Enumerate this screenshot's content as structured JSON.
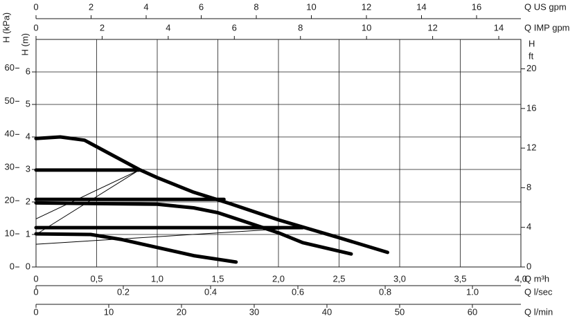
{
  "chart_data": {
    "type": "line",
    "xlabel": "Q m³h",
    "xlim": [
      0,
      4.0
    ],
    "xticks": [
      0,
      {
        "value": 0.5,
        "label": "0,5"
      },
      {
        "value": 1,
        "label": "1,0"
      },
      {
        "value": 1.5,
        "label": "1,5"
      },
      {
        "value": 2,
        "label": "2,0"
      },
      {
        "value": 2.5,
        "label": "2,5"
      },
      {
        "value": 3,
        "label": "3,0"
      },
      {
        "value": 3.5,
        "label": "3,5"
      },
      {
        "value": 4,
        "label": "4,0"
      }
    ],
    "ylabel": "H (m)",
    "ylim": [
      0,
      7
    ],
    "yticks": [
      0,
      1,
      2,
      3,
      4,
      5,
      6
    ],
    "grid": true,
    "x_axes": [
      {
        "position": "top",
        "label": "Q US gpm",
        "xlim": [
          0,
          17.61
        ],
        "xticks": [
          0,
          2,
          4,
          6,
          8,
          10,
          12,
          14,
          16
        ]
      },
      {
        "position": "top",
        "label": "Q IMP gpm",
        "xlim": [
          0,
          14.67
        ],
        "xticks": [
          0,
          2,
          4,
          6,
          8,
          10,
          12,
          14
        ]
      },
      {
        "position": "bottom",
        "label": "Q l/sec",
        "xlim": [
          0,
          1.111
        ],
        "xticks": [
          0,
          0.2,
          0.4,
          0.6,
          0.8,
          {
            "value": 1,
            "label": "1.0"
          }
        ]
      },
      {
        "position": "bottom",
        "label": "Q l/min",
        "xlim": [
          0,
          66.67
        ],
        "xticks": [
          0,
          10,
          20,
          30,
          40,
          50,
          60
        ]
      }
    ],
    "y_axes": [
      {
        "position": "left",
        "label": "H (kPa)",
        "ylim": [
          0,
          68.65
        ],
        "yticks": [
          0,
          10,
          20,
          30,
          40,
          50,
          60
        ]
      },
      {
        "position": "right",
        "label": "H",
        "unit": "ft",
        "ylim": [
          0,
          22.97
        ],
        "yticks": [
          0,
          4,
          8,
          12,
          16,
          20
        ]
      }
    ],
    "series": [
      {
        "color": "#000000",
        "linestyle": "thick",
        "x": [
          0,
          0.2,
          0.4,
          0.6,
          0.85,
          1.0,
          1.3,
          1.6,
          2.0,
          2.5,
          2.9
        ],
        "values": [
          3.95,
          4.0,
          3.9,
          3.5,
          3.0,
          2.75,
          2.3,
          1.95,
          1.45,
          0.9,
          0.45
        ]
      },
      {
        "color": "#000000",
        "linestyle": "thick",
        "x": [
          0,
          1.0,
          1.3,
          1.5,
          1.8,
          2.0,
          2.2,
          2.6
        ],
        "values": [
          1.97,
          1.93,
          1.82,
          1.67,
          1.3,
          1.05,
          0.75,
          0.4
        ]
      },
      {
        "color": "#000000",
        "linestyle": "thick",
        "x": [
          0,
          0.45,
          0.7,
          1.0,
          1.3,
          1.65
        ],
        "values": [
          1.02,
          1.0,
          0.85,
          0.6,
          0.35,
          0.15
        ]
      },
      {
        "color": "#000000",
        "linestyle": "thick",
        "x": [
          0,
          0.85
        ],
        "values": [
          2.98,
          2.98
        ]
      },
      {
        "color": "#000000",
        "linestyle": "thick",
        "x": [
          0,
          1.55
        ],
        "values": [
          2.08,
          2.08
        ]
      },
      {
        "color": "#000000",
        "linestyle": "thick",
        "x": [
          0,
          2.2
        ],
        "values": [
          1.21,
          1.21
        ]
      },
      {
        "color": "#000000",
        "linestyle": "thin",
        "x": [
          0,
          0.85
        ],
        "values": [
          1.48,
          2.98
        ]
      },
      {
        "color": "#000000",
        "linestyle": "thin",
        "x": [
          0,
          0.85
        ],
        "values": [
          1.0,
          2.98
        ]
      },
      {
        "color": "#000000",
        "linestyle": "thin",
        "x": [
          0,
          2.2
        ],
        "values": [
          0.7,
          1.21
        ]
      }
    ]
  }
}
